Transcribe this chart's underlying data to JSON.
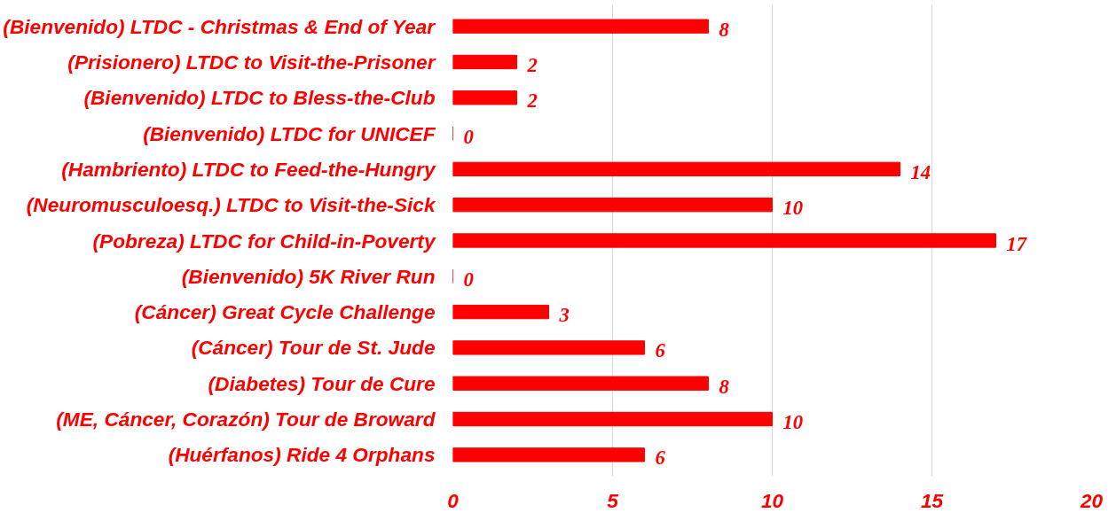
{
  "chart_data": {
    "type": "bar",
    "orientation": "horizontal",
    "categories": [
      "(Bienvenido) LTDC - Christmas & End of Year",
      "(Prisionero) LTDC to Visit-the-Prisoner",
      "(Bienvenido) LTDC to Bless-the-Club",
      "(Bienvenido) LTDC for UNICEF",
      "(Hambriento) LTDC to Feed-the-Hungry",
      "(Neuromusculoesq.) LTDC to Visit-the-Sick",
      "(Pobreza) LTDC for Child-in-Poverty",
      "(Bienvenido) 5K River Run",
      "(Cáncer) Great Cycle Challenge",
      "(Cáncer) Tour de St. Jude",
      "(Diabetes) Tour de Cure",
      "(ME, Cáncer, Corazón) Tour de Broward",
      "(Huérfanos) Ride 4 Orphans"
    ],
    "values": [
      8,
      2,
      2,
      0,
      14,
      10,
      17,
      0,
      3,
      6,
      8,
      10,
      6
    ],
    "color": "#ff0000",
    "xlim": [
      0,
      20
    ],
    "xticks": [
      0,
      5,
      10,
      15,
      20
    ],
    "grid": "x",
    "data_labels": true
  }
}
